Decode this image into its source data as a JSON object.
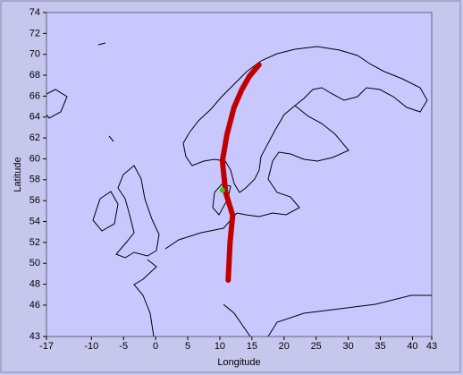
{
  "chart_data": {
    "type": "line",
    "x_label": "Longitude",
    "y_label": "Latitude",
    "series": [
      {
        "color": "#c00000",
        "x": [
          11.3,
          11.6,
          12.0,
          10.9,
          10.4,
          11.1,
          12.2,
          13.4,
          14.6,
          16.1
        ],
        "values": [
          48.4,
          52.1,
          54.6,
          56.8,
          59.8,
          62.3,
          64.9,
          66.6,
          67.9,
          69.0
        ]
      },
      {
        "color": "#40c020",
        "x": [
          10.4
        ],
        "values": [
          57.0
        ]
      }
    ],
    "xlim": [
      -17,
      43
    ],
    "ylim": [
      43,
      74
    ],
    "xticks": [
      -17,
      -10,
      -5,
      0,
      5,
      10,
      15,
      20,
      25,
      30,
      35,
      40,
      43
    ],
    "yticks": [
      43,
      46,
      48,
      50,
      52,
      54,
      56,
      58,
      60,
      62,
      64,
      66,
      68,
      70,
      72,
      74
    ],
    "background": "#c8c8ff"
  }
}
